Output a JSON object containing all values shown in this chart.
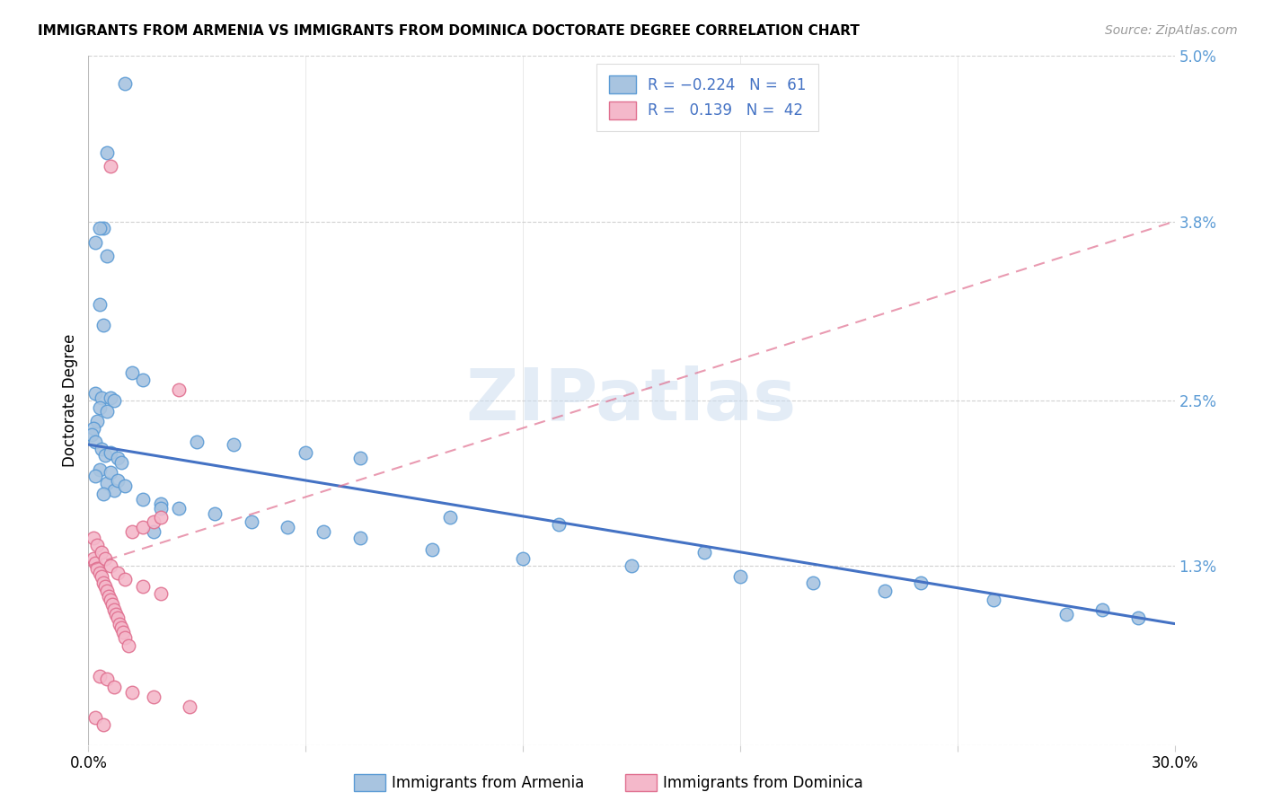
{
  "title": "IMMIGRANTS FROM ARMENIA VS IMMIGRANTS FROM DOMINICA DOCTORATE DEGREE CORRELATION CHART",
  "source": "Source: ZipAtlas.com",
  "ylabel": "Doctorate Degree",
  "xmin": 0.0,
  "xmax": 30.0,
  "ymin": 0.0,
  "ymax": 5.0,
  "color_armenia": "#a8c4e0",
  "color_armenia_edge": "#5b9bd5",
  "color_dominica": "#f4b8ca",
  "color_dominica_edge": "#e07090",
  "color_line_armenia": "#4472c4",
  "color_line_dominica": "#e07090",
  "watermark_color": "#ccddf0",
  "ytick_color": "#5b9bd5",
  "armenia_line_x0": 0.0,
  "armenia_line_y0": 2.18,
  "armenia_line_x1": 30.0,
  "armenia_line_y1": 0.88,
  "dominica_line_x0": 0.0,
  "dominica_line_y0": 1.3,
  "dominica_line_x1": 30.0,
  "dominica_line_y1": 3.8,
  "armenia_x": [
    1.0,
    0.5,
    0.4,
    0.3,
    0.2,
    0.5,
    0.3,
    0.4,
    1.2,
    1.5,
    0.2,
    0.35,
    0.6,
    0.7,
    0.3,
    0.5,
    0.25,
    0.15,
    0.1,
    0.2,
    0.35,
    0.45,
    0.6,
    0.8,
    0.9,
    0.3,
    0.2,
    0.5,
    0.7,
    0.4,
    1.5,
    2.0,
    2.5,
    3.5,
    4.5,
    5.5,
    6.5,
    7.5,
    9.5,
    12.0,
    15.0,
    18.0,
    20.0,
    22.0,
    25.0,
    28.0,
    29.0,
    10.0,
    6.0,
    4.0,
    3.0,
    7.5,
    13.0,
    17.0,
    23.0,
    27.0,
    0.6,
    0.8,
    1.0,
    2.0,
    1.8
  ],
  "armenia_y": [
    4.8,
    4.3,
    3.75,
    3.75,
    3.65,
    3.55,
    3.2,
    3.05,
    2.7,
    2.65,
    2.55,
    2.52,
    2.52,
    2.5,
    2.45,
    2.42,
    2.35,
    2.3,
    2.25,
    2.2,
    2.15,
    2.1,
    2.12,
    2.08,
    2.05,
    2.0,
    1.95,
    1.9,
    1.85,
    1.82,
    1.78,
    1.75,
    1.72,
    1.68,
    1.62,
    1.58,
    1.55,
    1.5,
    1.42,
    1.35,
    1.3,
    1.22,
    1.18,
    1.12,
    1.05,
    0.98,
    0.92,
    1.65,
    2.12,
    2.18,
    2.2,
    2.08,
    1.6,
    1.4,
    1.18,
    0.95,
    1.98,
    1.92,
    1.88,
    1.72,
    1.55
  ],
  "dominica_x": [
    0.15,
    0.2,
    0.25,
    0.3,
    0.35,
    0.4,
    0.45,
    0.5,
    0.55,
    0.6,
    0.65,
    0.7,
    0.75,
    0.8,
    0.85,
    0.9,
    0.95,
    1.0,
    1.1,
    1.2,
    1.5,
    1.8,
    2.0,
    2.5,
    0.15,
    0.25,
    0.35,
    0.45,
    0.6,
    0.8,
    1.0,
    1.5,
    2.0,
    0.3,
    0.5,
    0.7,
    1.2,
    1.8,
    2.8,
    0.2,
    0.4,
    0.6
  ],
  "dominica_y": [
    1.35,
    1.32,
    1.28,
    1.25,
    1.22,
    1.18,
    1.15,
    1.12,
    1.08,
    1.05,
    1.02,
    0.98,
    0.95,
    0.92,
    0.88,
    0.85,
    0.82,
    0.78,
    0.72,
    1.55,
    1.58,
    1.62,
    1.65,
    2.58,
    1.5,
    1.45,
    1.4,
    1.35,
    1.3,
    1.25,
    1.2,
    1.15,
    1.1,
    0.5,
    0.48,
    0.42,
    0.38,
    0.35,
    0.28,
    0.2,
    0.15,
    4.2
  ]
}
